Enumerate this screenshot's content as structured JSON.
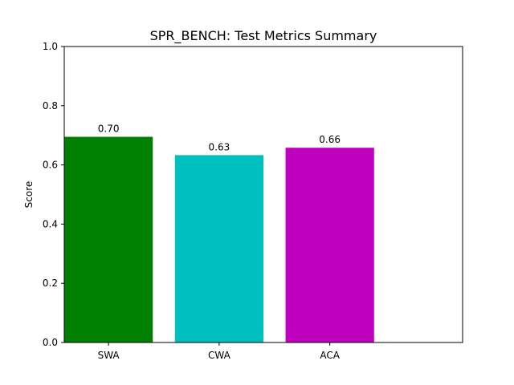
{
  "chart_data": {
    "type": "bar",
    "title": "SPR_BENCH: Test Metrics Summary",
    "xlabel": "",
    "ylabel": "Score",
    "categories": [
      "SWA",
      "CWA",
      "ACA"
    ],
    "values": [
      0.695,
      0.633,
      0.658
    ],
    "value_labels": [
      "0.70",
      "0.63",
      "0.66"
    ],
    "colors": [
      "#008000",
      "#00bfbf",
      "#bf00bf"
    ],
    "ylim": [
      0,
      1.0
    ],
    "yticks": [
      0.0,
      0.2,
      0.4,
      0.6,
      0.8,
      1.0
    ],
    "ytick_labels": [
      "0.0",
      "0.2",
      "0.4",
      "0.6",
      "0.8",
      "1.0"
    ],
    "grid": false,
    "legend": "none"
  }
}
